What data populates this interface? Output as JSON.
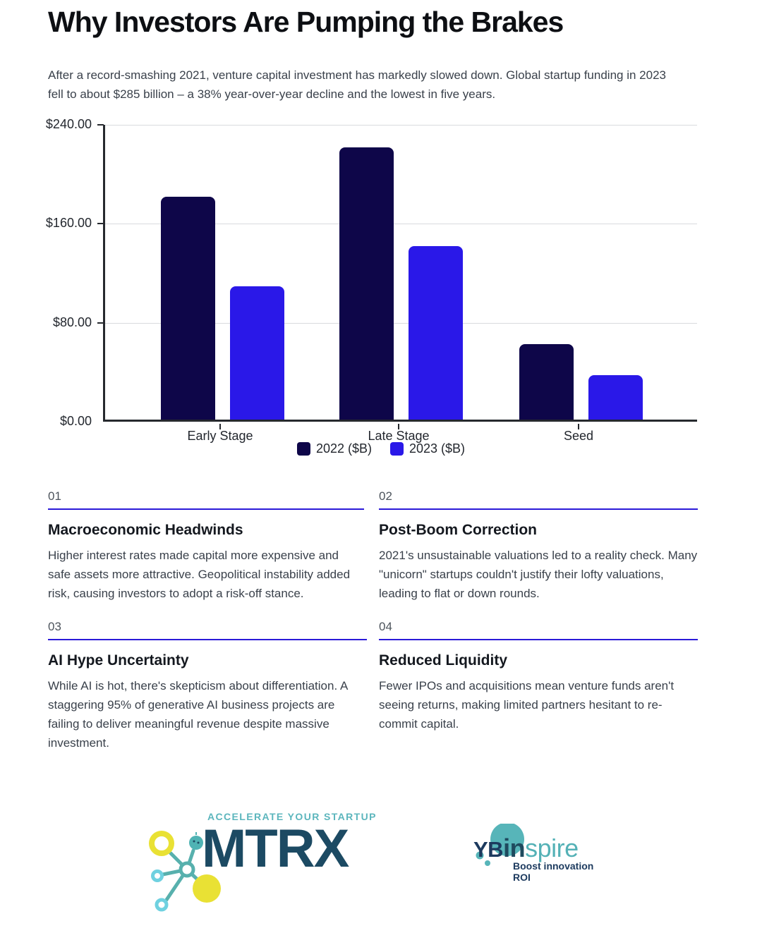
{
  "header": {
    "title": "Why Investors Are Pumping the Brakes",
    "intro": "After a record-smashing 2021, venture capital investment has markedly slowed down. Global startup funding in 2023 fell to about $285 billion – a 38% year-over-year decline and the lowest in five years."
  },
  "chart_data": {
    "type": "bar",
    "title": "",
    "categories": [
      "Early Stage",
      "Late Stage",
      "Seed"
    ],
    "series": [
      {
        "name": "2022 ($B)",
        "color": "#0e0649",
        "values": [
          180,
          220,
          61
        ]
      },
      {
        "name": "2023 ($B)",
        "color": "#2a18e8",
        "values": [
          108,
          140,
          36
        ]
      }
    ],
    "xlabel": "",
    "ylabel": "",
    "ylim": [
      0,
      240
    ],
    "y_ticks": [
      240,
      160,
      80,
      0
    ],
    "y_tick_labels": [
      "$240.00",
      "$160.00",
      "$80.00",
      "$0.00"
    ],
    "grid": true,
    "legend_position": "bottom"
  },
  "sections": [
    {
      "number": "01",
      "title": "Macroeconomic Headwinds",
      "body": "Higher interest rates made capital more expensive and safe assets more attractive. Geopolitical instability added risk, causing investors to adopt a risk-off stance."
    },
    {
      "number": "02",
      "title": "Post-Boom Correction",
      "body": "2021's unsustainable valuations led to a reality check. Many \"unicorn\" startups couldn't justify their lofty valuations, leading to flat or down rounds."
    },
    {
      "number": "03",
      "title": "AI Hype Uncertainty",
      "body": "While AI is hot, there's skepticism about differentiation. A staggering 95% of generative AI business projects are failing to deliver meaningful revenue despite massive investment."
    },
    {
      "number": "04",
      "title": "Reduced Liquidity",
      "body": "Fewer IPOs and acquisitions mean venture funds aren't seeing returns, making limited partners hesitant to re-commit capital."
    }
  ],
  "footer": {
    "mtrx": {
      "tagline": "ACCELERATE YOUR STARTUP",
      "wordmark": "MTRX"
    },
    "ybinspire": {
      "yb": "YB",
      "in_part": "in",
      "spire_part": "spire",
      "tagline": "Boost innovation ROI"
    }
  },
  "colors": {
    "bar_2022": "#0e0649",
    "bar_2023": "#2a18e8",
    "divider": "#2b1ad8",
    "teal": "#57b0ad",
    "light_teal": "#6fd1e0",
    "yellow": "#e9e134",
    "mtrx_slate": "#1c4a63",
    "yb_navy": "#1c3a5e"
  }
}
